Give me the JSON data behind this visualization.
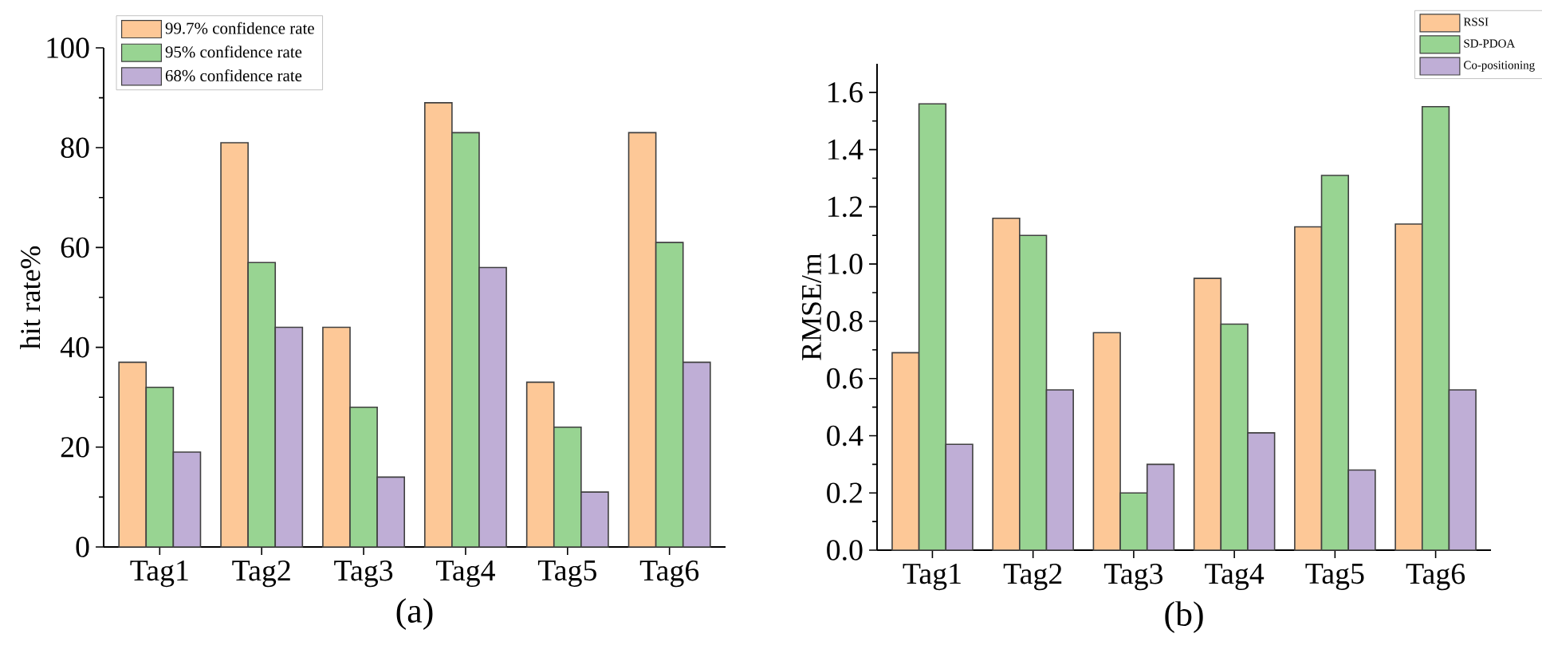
{
  "chart_data": [
    {
      "type": "bar",
      "categories": [
        "Tag1",
        "Tag2",
        "Tag3",
        "Tag4",
        "Tag5",
        "Tag6"
      ],
      "ylabel": "hit rate%",
      "ylim": [
        0,
        100
      ],
      "yticks": [
        0,
        20,
        40,
        60,
        80,
        100
      ],
      "legend": "top left",
      "annotations": [
        "(a)"
      ],
      "series": [
        {
          "name": "99.7% confidence rate",
          "color": "#fdc897",
          "values": [
            37,
            81,
            44,
            89,
            33,
            83
          ]
        },
        {
          "name": "95% confidence rate",
          "color": "#98d492",
          "values": [
            32,
            57,
            28,
            83,
            24,
            61
          ]
        },
        {
          "name": "68% confidence rate",
          "color": "#bfaed6",
          "values": [
            19,
            44,
            14,
            56,
            11,
            37
          ]
        }
      ]
    },
    {
      "type": "bar",
      "categories": [
        "Tag1",
        "Tag2",
        "Tag3",
        "Tag4",
        "Tag5",
        "Tag6"
      ],
      "ylabel": "RMSE/m",
      "ylim": [
        0,
        1.7
      ],
      "yticks": [
        {
          "value": 0,
          "label": "0.0"
        },
        {
          "value": 0.2,
          "label": "0.2"
        },
        {
          "value": 0.4,
          "label": "0.4"
        },
        {
          "value": 0.6,
          "label": "0.6"
        },
        {
          "value": 0.8,
          "label": "0.8"
        },
        {
          "value": 1.0,
          "label": "1.0"
        },
        {
          "value": 1.2,
          "label": "1.2"
        },
        {
          "value": 1.4,
          "label": "1.4"
        },
        {
          "value": 1.6,
          "label": "1.6"
        }
      ],
      "legend": "top right",
      "annotations": [
        "(b)"
      ],
      "series": [
        {
          "name": "RSSI",
          "color": "#fdc897",
          "values": [
            0.69,
            1.16,
            0.76,
            0.95,
            1.13,
            1.14
          ]
        },
        {
          "name": "SD-PDOA",
          "color": "#98d492",
          "values": [
            1.56,
            1.1,
            0.2,
            0.79,
            1.31,
            1.55
          ]
        },
        {
          "name": "Co-positioning",
          "color": "#bfaed6",
          "values": [
            0.37,
            0.56,
            0.3,
            0.41,
            0.28,
            0.56
          ]
        }
      ]
    }
  ]
}
